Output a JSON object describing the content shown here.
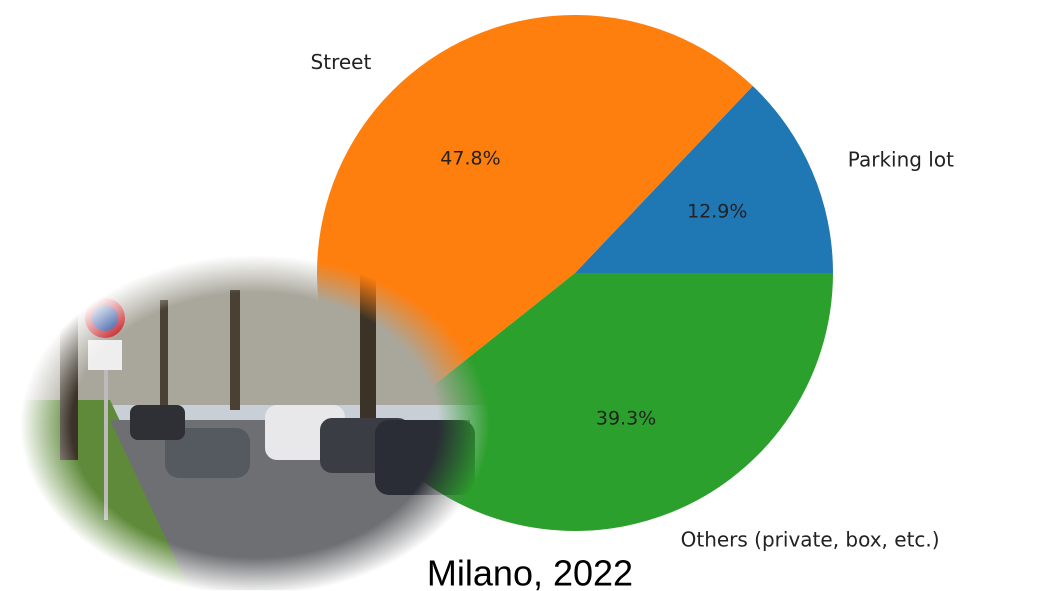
{
  "chart_data": {
    "type": "pie",
    "categories": [
      "Parking lot",
      "Street",
      "Others (private, box, etc.)"
    ],
    "values": [
      12.9,
      47.8,
      39.3
    ],
    "value_labels": [
      "12.9%",
      "47.8%",
      "39.3%"
    ],
    "colors": [
      "#1f77b4",
      "#ff7f0e",
      "#2ca02c"
    ],
    "annotation": "Milano, 2022"
  }
}
